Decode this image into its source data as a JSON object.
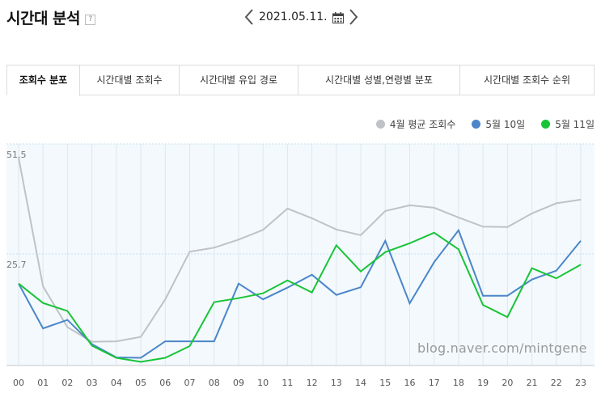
{
  "header": {
    "title": "시간대 분석",
    "help_icon": "?"
  },
  "date_nav": {
    "date": "2021.05.11."
  },
  "tabs": [
    {
      "label": "조회수 분포",
      "active": true
    },
    {
      "label": "시간대별 조회수",
      "active": false
    },
    {
      "label": "시간대별 유입 경로",
      "active": false
    },
    {
      "label": "시간대별 성별,연령별 분포",
      "active": false
    },
    {
      "label": "시간대별 조회수 순위",
      "active": false
    }
  ],
  "watermark": "blog.naver.com/mintgene",
  "chart_data": {
    "type": "line",
    "x": [
      "00",
      "01",
      "02",
      "03",
      "04",
      "05",
      "06",
      "07",
      "08",
      "09",
      "10",
      "11",
      "12",
      "13",
      "14",
      "15",
      "16",
      "17",
      "18",
      "19",
      "20",
      "21",
      "22",
      "23"
    ],
    "y_ticks": [
      "51.5",
      "25.7"
    ],
    "ylim": [
      0,
      51.5
    ],
    "series": [
      {
        "name": "4월 평균 조회수",
        "color": "#bfc2c6",
        "values": [
          51.5,
          19.6,
          9.5,
          5.9,
          6.0,
          7.1,
          16.4,
          28.2,
          29.2,
          31.2,
          33.6,
          38.9,
          36.5,
          33.7,
          32.3,
          38.3,
          39.7,
          39.1,
          36.7,
          34.4,
          34.3,
          37.7,
          40.2,
          41.1
        ]
      },
      {
        "name": "5월 10일",
        "color": "#4a86c8",
        "values": [
          20.3,
          9.2,
          11.3,
          5.3,
          2.0,
          1.9,
          6.0,
          6.0,
          6.0,
          20.3,
          16.4,
          19.3,
          22.5,
          17.5,
          19.4,
          30.9,
          15.4,
          25.6,
          33.5,
          17.3,
          17.3,
          21.3,
          23.5,
          30.9
        ]
      },
      {
        "name": "5월 11일",
        "color": "#18c437",
        "values": [
          20.3,
          15.5,
          13.5,
          4.9,
          1.9,
          0.9,
          1.9,
          4.8,
          15.7,
          16.7,
          17.9,
          21.1,
          18.1,
          29.8,
          23.3,
          28.1,
          30.3,
          32.9,
          28.8,
          15.0,
          12.0,
          24.1,
          21.6,
          25.0
        ]
      }
    ]
  }
}
